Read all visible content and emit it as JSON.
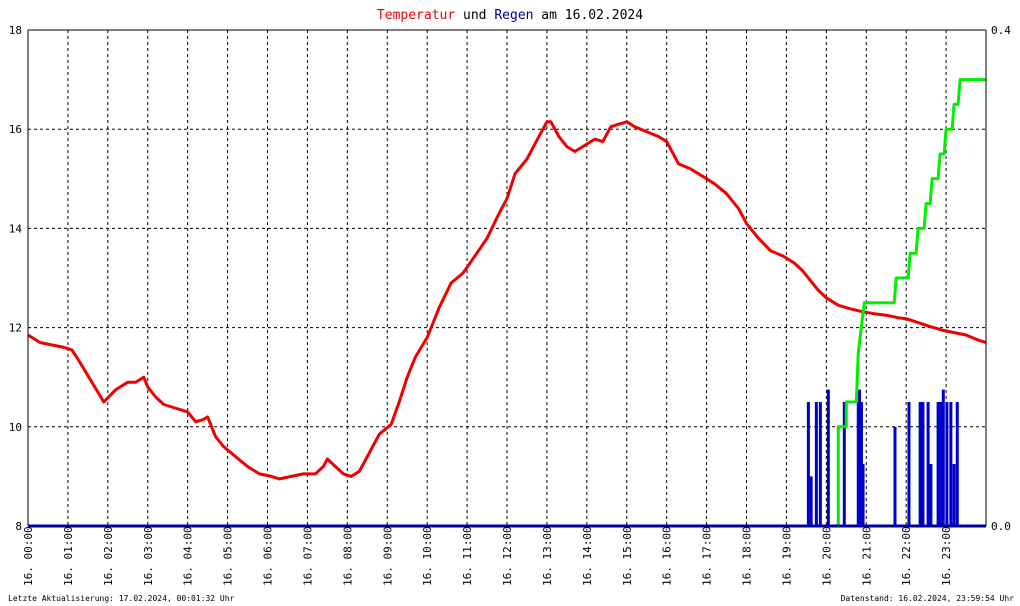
{
  "title": {
    "part1": "Temperatur",
    "part2": " und ",
    "part3": "Regen",
    "part4": " am 16.02.2024",
    "colors": {
      "temp": "#ee0000",
      "rain": "#000099",
      "text": "#000000"
    }
  },
  "footer": {
    "left": "Letzte Aktualisierung: 17.02.2024, 00:01:32 Uhr",
    "right": "Datenstand: 16.02.2024, 23:59:54 Uhr"
  },
  "chart_data": {
    "type": "line",
    "x_unit": "hours",
    "x_range": [
      0,
      24
    ],
    "x_ticks": [
      {
        "h": 0,
        "label": "16. 00:00"
      },
      {
        "h": 1,
        "label": "16. 01:00"
      },
      {
        "h": 2,
        "label": "16. 02:00"
      },
      {
        "h": 3,
        "label": "16. 03:00"
      },
      {
        "h": 4,
        "label": "16. 04:00"
      },
      {
        "h": 5,
        "label": "16. 05:00"
      },
      {
        "h": 6,
        "label": "16. 06:00"
      },
      {
        "h": 7,
        "label": "16. 07:00"
      },
      {
        "h": 8,
        "label": "16. 08:00"
      },
      {
        "h": 9,
        "label": "16. 09:00"
      },
      {
        "h": 10,
        "label": "16. 10:00"
      },
      {
        "h": 11,
        "label": "16. 11:00"
      },
      {
        "h": 12,
        "label": "16. 12:00"
      },
      {
        "h": 13,
        "label": "16. 13:00"
      },
      {
        "h": 14,
        "label": "16. 14:00"
      },
      {
        "h": 15,
        "label": "16. 15:00"
      },
      {
        "h": 16,
        "label": "16. 16:00"
      },
      {
        "h": 17,
        "label": "16. 17:00"
      },
      {
        "h": 18,
        "label": "16. 18:00"
      },
      {
        "h": 19,
        "label": "16. 19:00"
      },
      {
        "h": 20,
        "label": "16. 20:00"
      },
      {
        "h": 21,
        "label": "16. 21:00"
      },
      {
        "h": 22,
        "label": "16. 22:00"
      },
      {
        "h": 23,
        "label": "16. 23:00"
      }
    ],
    "y_left": {
      "range": [
        8,
        18
      ],
      "ticks": [
        "8",
        "10",
        "12",
        "14",
        "16",
        "18"
      ],
      "tick_values": [
        8,
        10,
        12,
        14,
        16,
        18
      ]
    },
    "y_right": {
      "range": [
        0,
        0.4
      ],
      "ticks": [
        "0.0",
        "0.4"
      ],
      "tick_values": [
        0,
        0.4
      ]
    },
    "grid": true,
    "series": [
      {
        "id": "temperature",
        "axis": "left",
        "color": "#ee0000",
        "points": [
          [
            0.0,
            11.85
          ],
          [
            0.3,
            11.7
          ],
          [
            0.6,
            11.65
          ],
          [
            0.9,
            11.6
          ],
          [
            1.1,
            11.55
          ],
          [
            1.3,
            11.3
          ],
          [
            1.6,
            10.9
          ],
          [
            1.9,
            10.5
          ],
          [
            2.2,
            10.75
          ],
          [
            2.5,
            10.9
          ],
          [
            2.7,
            10.9
          ],
          [
            2.9,
            11.0
          ],
          [
            3.0,
            10.8
          ],
          [
            3.2,
            10.6
          ],
          [
            3.4,
            10.45
          ],
          [
            3.6,
            10.4
          ],
          [
            3.8,
            10.35
          ],
          [
            4.0,
            10.3
          ],
          [
            4.2,
            10.1
          ],
          [
            4.4,
            10.15
          ],
          [
            4.5,
            10.2
          ],
          [
            4.7,
            9.8
          ],
          [
            4.9,
            9.6
          ],
          [
            5.2,
            9.4
          ],
          [
            5.5,
            9.2
          ],
          [
            5.8,
            9.05
          ],
          [
            6.1,
            9.0
          ],
          [
            6.3,
            8.95
          ],
          [
            6.6,
            9.0
          ],
          [
            6.9,
            9.05
          ],
          [
            7.2,
            9.05
          ],
          [
            7.4,
            9.2
          ],
          [
            7.5,
            9.35
          ],
          [
            7.7,
            9.2
          ],
          [
            7.9,
            9.05
          ],
          [
            8.1,
            9.0
          ],
          [
            8.3,
            9.1
          ],
          [
            8.5,
            9.4
          ],
          [
            8.8,
            9.85
          ],
          [
            9.1,
            10.05
          ],
          [
            9.3,
            10.5
          ],
          [
            9.5,
            11.0
          ],
          [
            9.7,
            11.4
          ],
          [
            10.0,
            11.8
          ],
          [
            10.3,
            12.4
          ],
          [
            10.6,
            12.9
          ],
          [
            10.9,
            13.1
          ],
          [
            11.2,
            13.45
          ],
          [
            11.5,
            13.8
          ],
          [
            11.8,
            14.3
          ],
          [
            12.0,
            14.6
          ],
          [
            12.2,
            15.1
          ],
          [
            12.5,
            15.4
          ],
          [
            12.8,
            15.85
          ],
          [
            13.0,
            16.15
          ],
          [
            13.1,
            16.15
          ],
          [
            13.3,
            15.85
          ],
          [
            13.5,
            15.65
          ],
          [
            13.7,
            15.55
          ],
          [
            14.0,
            15.7
          ],
          [
            14.2,
            15.8
          ],
          [
            14.4,
            15.75
          ],
          [
            14.6,
            16.05
          ],
          [
            14.8,
            16.1
          ],
          [
            15.0,
            16.15
          ],
          [
            15.2,
            16.05
          ],
          [
            15.5,
            15.95
          ],
          [
            15.8,
            15.85
          ],
          [
            16.0,
            15.75
          ],
          [
            16.3,
            15.3
          ],
          [
            16.6,
            15.2
          ],
          [
            16.9,
            15.05
          ],
          [
            17.2,
            14.9
          ],
          [
            17.5,
            14.7
          ],
          [
            17.8,
            14.4
          ],
          [
            18.0,
            14.1
          ],
          [
            18.3,
            13.8
          ],
          [
            18.6,
            13.55
          ],
          [
            18.9,
            13.45
          ],
          [
            19.2,
            13.3
          ],
          [
            19.4,
            13.15
          ],
          [
            19.6,
            12.95
          ],
          [
            19.8,
            12.75
          ],
          [
            20.0,
            12.6
          ],
          [
            20.3,
            12.45
          ],
          [
            20.6,
            12.38
          ],
          [
            20.9,
            12.32
          ],
          [
            21.2,
            12.28
          ],
          [
            21.5,
            12.25
          ],
          [
            21.8,
            12.2
          ],
          [
            22.0,
            12.18
          ],
          [
            22.3,
            12.1
          ],
          [
            22.6,
            12.02
          ],
          [
            22.9,
            11.95
          ],
          [
            23.2,
            11.9
          ],
          [
            23.5,
            11.85
          ],
          [
            23.8,
            11.75
          ],
          [
            24.0,
            11.7
          ]
        ]
      },
      {
        "id": "rain_cumulative",
        "axis": "right",
        "color": "#00ee00",
        "points": [
          [
            19.9,
            0.0
          ],
          [
            20.3,
            0.0
          ],
          [
            20.3,
            0.08
          ],
          [
            20.5,
            0.08
          ],
          [
            20.5,
            0.1
          ],
          [
            20.75,
            0.1
          ],
          [
            20.8,
            0.14
          ],
          [
            20.95,
            0.18
          ],
          [
            21.7,
            0.18
          ],
          [
            21.75,
            0.2
          ],
          [
            22.05,
            0.2
          ],
          [
            22.1,
            0.22
          ],
          [
            22.25,
            0.22
          ],
          [
            22.3,
            0.24
          ],
          [
            22.45,
            0.24
          ],
          [
            22.5,
            0.26
          ],
          [
            22.6,
            0.26
          ],
          [
            22.65,
            0.28
          ],
          [
            22.8,
            0.28
          ],
          [
            22.85,
            0.3
          ],
          [
            22.95,
            0.3
          ],
          [
            23.0,
            0.32
          ],
          [
            23.15,
            0.32
          ],
          [
            23.2,
            0.34
          ],
          [
            23.3,
            0.34
          ],
          [
            23.35,
            0.36
          ],
          [
            24.0,
            0.36
          ]
        ]
      }
    ],
    "bars": {
      "id": "rain_rate",
      "axis": "right",
      "color": "#0000cc",
      "baseline_color": "#000099",
      "values": [
        [
          19.55,
          0.1
        ],
        [
          19.62,
          0.04
        ],
        [
          19.75,
          0.1
        ],
        [
          19.85,
          0.1
        ],
        [
          20.05,
          0.11
        ],
        [
          20.45,
          0.1
        ],
        [
          20.8,
          0.1
        ],
        [
          20.83,
          0.11
        ],
        [
          20.88,
          0.1
        ],
        [
          20.92,
          0.05
        ],
        [
          21.72,
          0.08
        ],
        [
          22.07,
          0.1
        ],
        [
          22.35,
          0.1
        ],
        [
          22.42,
          0.1
        ],
        [
          22.55,
          0.1
        ],
        [
          22.62,
          0.05
        ],
        [
          22.8,
          0.1
        ],
        [
          22.87,
          0.1
        ],
        [
          22.93,
          0.11
        ],
        [
          23.02,
          0.1
        ],
        [
          23.12,
          0.1
        ],
        [
          23.2,
          0.05
        ],
        [
          23.28,
          0.1
        ]
      ]
    }
  }
}
